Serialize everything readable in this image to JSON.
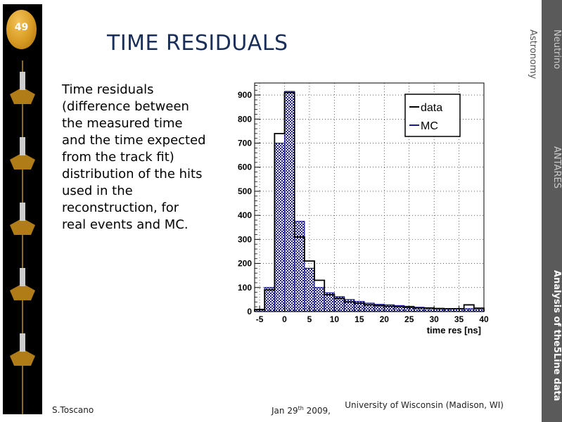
{
  "slide": {
    "number": "49",
    "title": "TIME RESIDUALS",
    "body": "Time residuals (difference between the measured time and the time expected from the track fit) distribution of the hits used in the reconstruction, for real events and MC."
  },
  "side_nav": {
    "astronomy": "Astronomy",
    "neutrino": "Neutrino",
    "antares": "ANTARES",
    "analysis": "Analysis of the5Line data"
  },
  "footer": {
    "author": "S.Toscano",
    "date_main": "Jan 29",
    "date_sup": "th",
    "date_year": " 2009,",
    "institution": "University of Wisconsin  (Madison, WI)"
  },
  "colors": {
    "title": "#1a2e5a",
    "mc": "#1a1a8c",
    "data": "#000000",
    "right_bar": "#5a5a5a"
  },
  "chart_data": {
    "type": "bar",
    "xlabel": "time res [ns]",
    "ylabel": "",
    "xlim": [
      -6,
      40
    ],
    "ylim": [
      0,
      950
    ],
    "bin_width": 2,
    "x_ticks": [
      -5,
      0,
      5,
      10,
      15,
      20,
      25,
      30,
      35,
      40
    ],
    "y_ticks": [
      0,
      100,
      200,
      300,
      400,
      500,
      600,
      700,
      800,
      900
    ],
    "grid": true,
    "legend_position": "top-right",
    "series": [
      {
        "name": "data",
        "style": "step",
        "bin_starts": [
          -6,
          -4,
          -2,
          0,
          2,
          4,
          6,
          8,
          10,
          12,
          14,
          16,
          18,
          20,
          22,
          24,
          26,
          28,
          30,
          32,
          34,
          36,
          38
        ],
        "values": [
          8,
          90,
          740,
          910,
          310,
          210,
          130,
          70,
          55,
          40,
          35,
          28,
          25,
          22,
          20,
          18,
          15,
          14,
          12,
          12,
          12,
          28,
          14
        ]
      },
      {
        "name": "MC",
        "style": "filled",
        "bin_starts": [
          -6,
          -4,
          -2,
          0,
          2,
          4,
          6,
          8,
          10,
          12,
          14,
          16,
          18,
          20,
          22,
          24,
          26,
          28,
          30,
          32,
          34,
          36,
          38
        ],
        "values": [
          10,
          100,
          700,
          915,
          375,
          180,
          100,
          78,
          62,
          50,
          42,
          35,
          30,
          28,
          25,
          22,
          18,
          16,
          14,
          12,
          12,
          12,
          12
        ]
      }
    ]
  }
}
